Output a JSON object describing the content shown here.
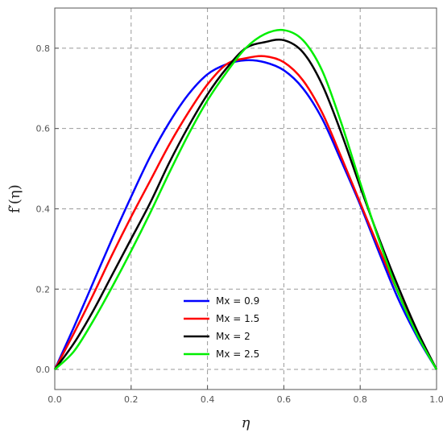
{
  "chart_data": {
    "type": "line",
    "xlabel": "η",
    "ylabel": "f′(η)",
    "xlim": [
      0,
      1
    ],
    "ylim": [
      -0.05,
      0.9
    ],
    "xticks": [
      "0.0",
      "0.2",
      "0.4",
      "0.6",
      "0.8",
      "1.0"
    ],
    "xtick_values": [
      0,
      0.2,
      0.4,
      0.6,
      0.8,
      1.0
    ],
    "yticks": [
      "0.0",
      "0.2",
      "0.4",
      "0.6",
      "0.8"
    ],
    "ytick_values": [
      0,
      0.2,
      0.4,
      0.6,
      0.8
    ],
    "grid": true,
    "legend_position": "bottom-center",
    "x": [
      0,
      0.05,
      0.1,
      0.15,
      0.2,
      0.25,
      0.3,
      0.35,
      0.4,
      0.45,
      0.5,
      0.55,
      0.6,
      0.65,
      0.7,
      0.75,
      0.8,
      0.85,
      0.9,
      0.95,
      1.0
    ],
    "series": [
      {
        "name": "Mx = 0.9",
        "color": "#0000ff",
        "values": [
          0,
          0.105,
          0.215,
          0.325,
          0.43,
          0.53,
          0.615,
          0.685,
          0.735,
          0.76,
          0.77,
          0.765,
          0.745,
          0.7,
          0.625,
          0.52,
          0.41,
          0.29,
          0.175,
          0.08,
          0
        ]
      },
      {
        "name": "Mx = 1.5",
        "color": "#ff0000",
        "values": [
          0,
          0.09,
          0.185,
          0.285,
          0.38,
          0.47,
          0.56,
          0.64,
          0.71,
          0.76,
          0.775,
          0.78,
          0.765,
          0.72,
          0.64,
          0.53,
          0.415,
          0.3,
          0.19,
          0.09,
          0
        ]
      },
      {
        "name": "Mx = 2",
        "color": "#000000",
        "values": [
          0,
          0.065,
          0.145,
          0.235,
          0.325,
          0.415,
          0.515,
          0.605,
          0.685,
          0.75,
          0.8,
          0.815,
          0.82,
          0.79,
          0.71,
          0.59,
          0.455,
          0.325,
          0.205,
          0.095,
          0
        ]
      },
      {
        "name": "Mx = 2.5",
        "color": "#00ee00",
        "values": [
          0,
          0.045,
          0.12,
          0.205,
          0.295,
          0.39,
          0.49,
          0.585,
          0.67,
          0.74,
          0.8,
          0.835,
          0.845,
          0.82,
          0.745,
          0.615,
          0.465,
          0.32,
          0.19,
          0.085,
          0
        ]
      }
    ]
  }
}
